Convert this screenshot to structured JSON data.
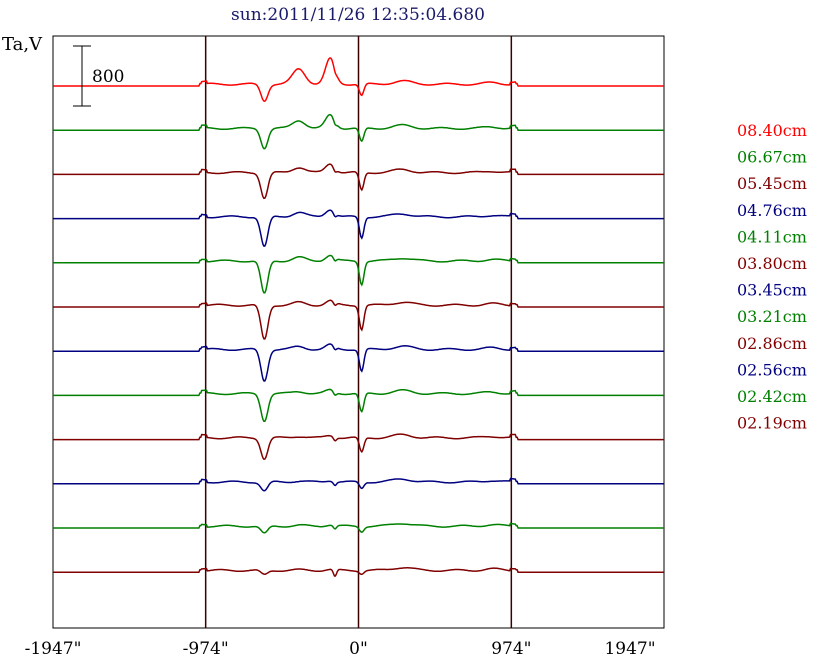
{
  "chart_data": {
    "type": "line",
    "title": "sun:2011/11/26 12:35:04.680",
    "ylabel": "Ta,V",
    "xlabel": "",
    "x_ticks": [
      "-1947\"",
      "-974\"",
      "0\"",
      "974\"",
      "1947\""
    ],
    "x_tick_values": [
      -1947,
      -974,
      0,
      974,
      1947
    ],
    "xlim": [
      -1947,
      1947
    ],
    "scale_bar": {
      "label": "800",
      "value": 800
    },
    "vertical_lines_at": [
      -974,
      0,
      974
    ],
    "grid": false,
    "legend_placement": "right",
    "series": [
      {
        "name": "08.40cm",
        "color": "#ff0000",
        "depth": 0.55,
        "bump": 0.85
      },
      {
        "name": "06.67cm",
        "color": "#008000",
        "depth": 0.65,
        "bump": 0.45
      },
      {
        "name": "05.45cm",
        "color": "#800000",
        "depth": 0.85,
        "bump": 0.3
      },
      {
        "name": "04.76cm",
        "color": "#000080",
        "depth": 1.0,
        "bump": 0.25
      },
      {
        "name": "04.11cm",
        "color": "#008000",
        "depth": 1.1,
        "bump": 0.2
      },
      {
        "name": "03.80cm",
        "color": "#800000",
        "depth": 1.15,
        "bump": 0.15
      },
      {
        "name": "03.45cm",
        "color": "#000080",
        "depth": 1.05,
        "bump": 0.15
      },
      {
        "name": "03.21cm",
        "color": "#008000",
        "depth": 0.9,
        "bump": 0.12
      },
      {
        "name": "02.86cm",
        "color": "#800000",
        "depth": 0.7,
        "bump": 0.08
      },
      {
        "name": "02.56cm",
        "color": "#000080",
        "depth": 0.3,
        "bump": 0.05
      },
      {
        "name": "02.42cm",
        "color": "#008000",
        "depth": 0.25,
        "bump": 0.05
      },
      {
        "name": "02.19cm",
        "color": "#800000",
        "depth": 0.15,
        "bump": 0.03
      }
    ]
  }
}
